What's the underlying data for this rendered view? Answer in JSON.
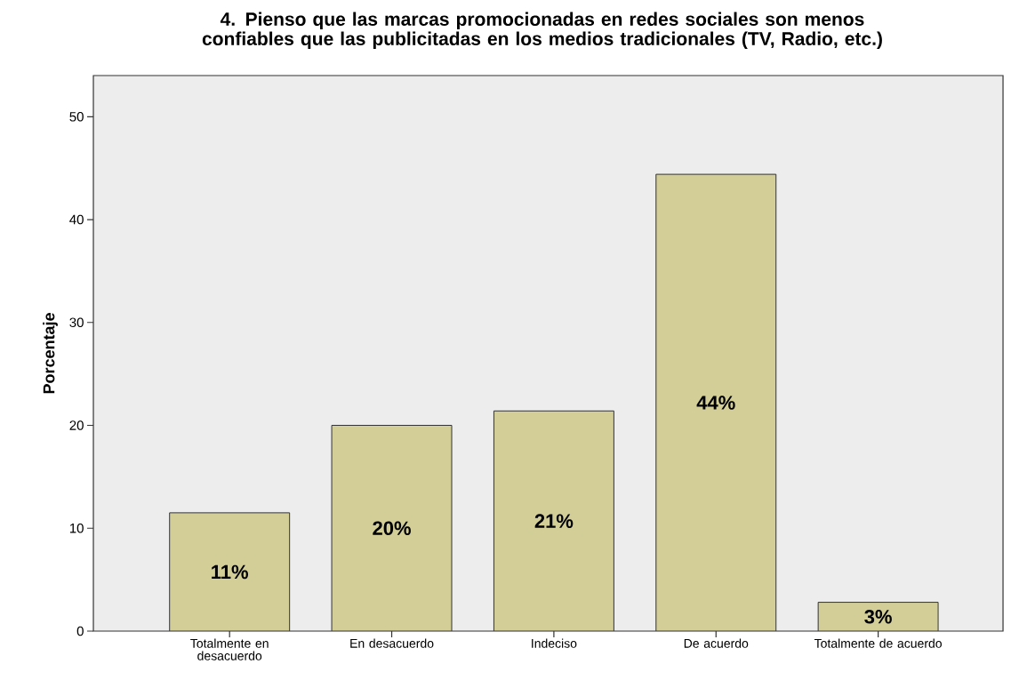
{
  "chart_data": {
    "type": "bar",
    "title": "4. Pienso que las marcas promocionadas en redes sociales son menos confiables que las publicitadas en los medios tradicionales (TV, Radio, etc.)",
    "ylabel": "Porcentaje",
    "categories": [
      "Totalmente en desacuerdo",
      "En desacuerdo",
      "Indeciso",
      "De acuerdo",
      "Totalmente de acuerdo"
    ],
    "values": [
      11.5,
      20.0,
      21.4,
      44.4,
      2.8
    ],
    "value_labels": [
      "11%",
      "20%",
      "21%",
      "44%",
      "3%"
    ],
    "color": "#d3ce98",
    "ylim": [
      0,
      54
    ],
    "yticks": [
      0,
      10,
      20,
      30,
      40,
      50
    ]
  }
}
